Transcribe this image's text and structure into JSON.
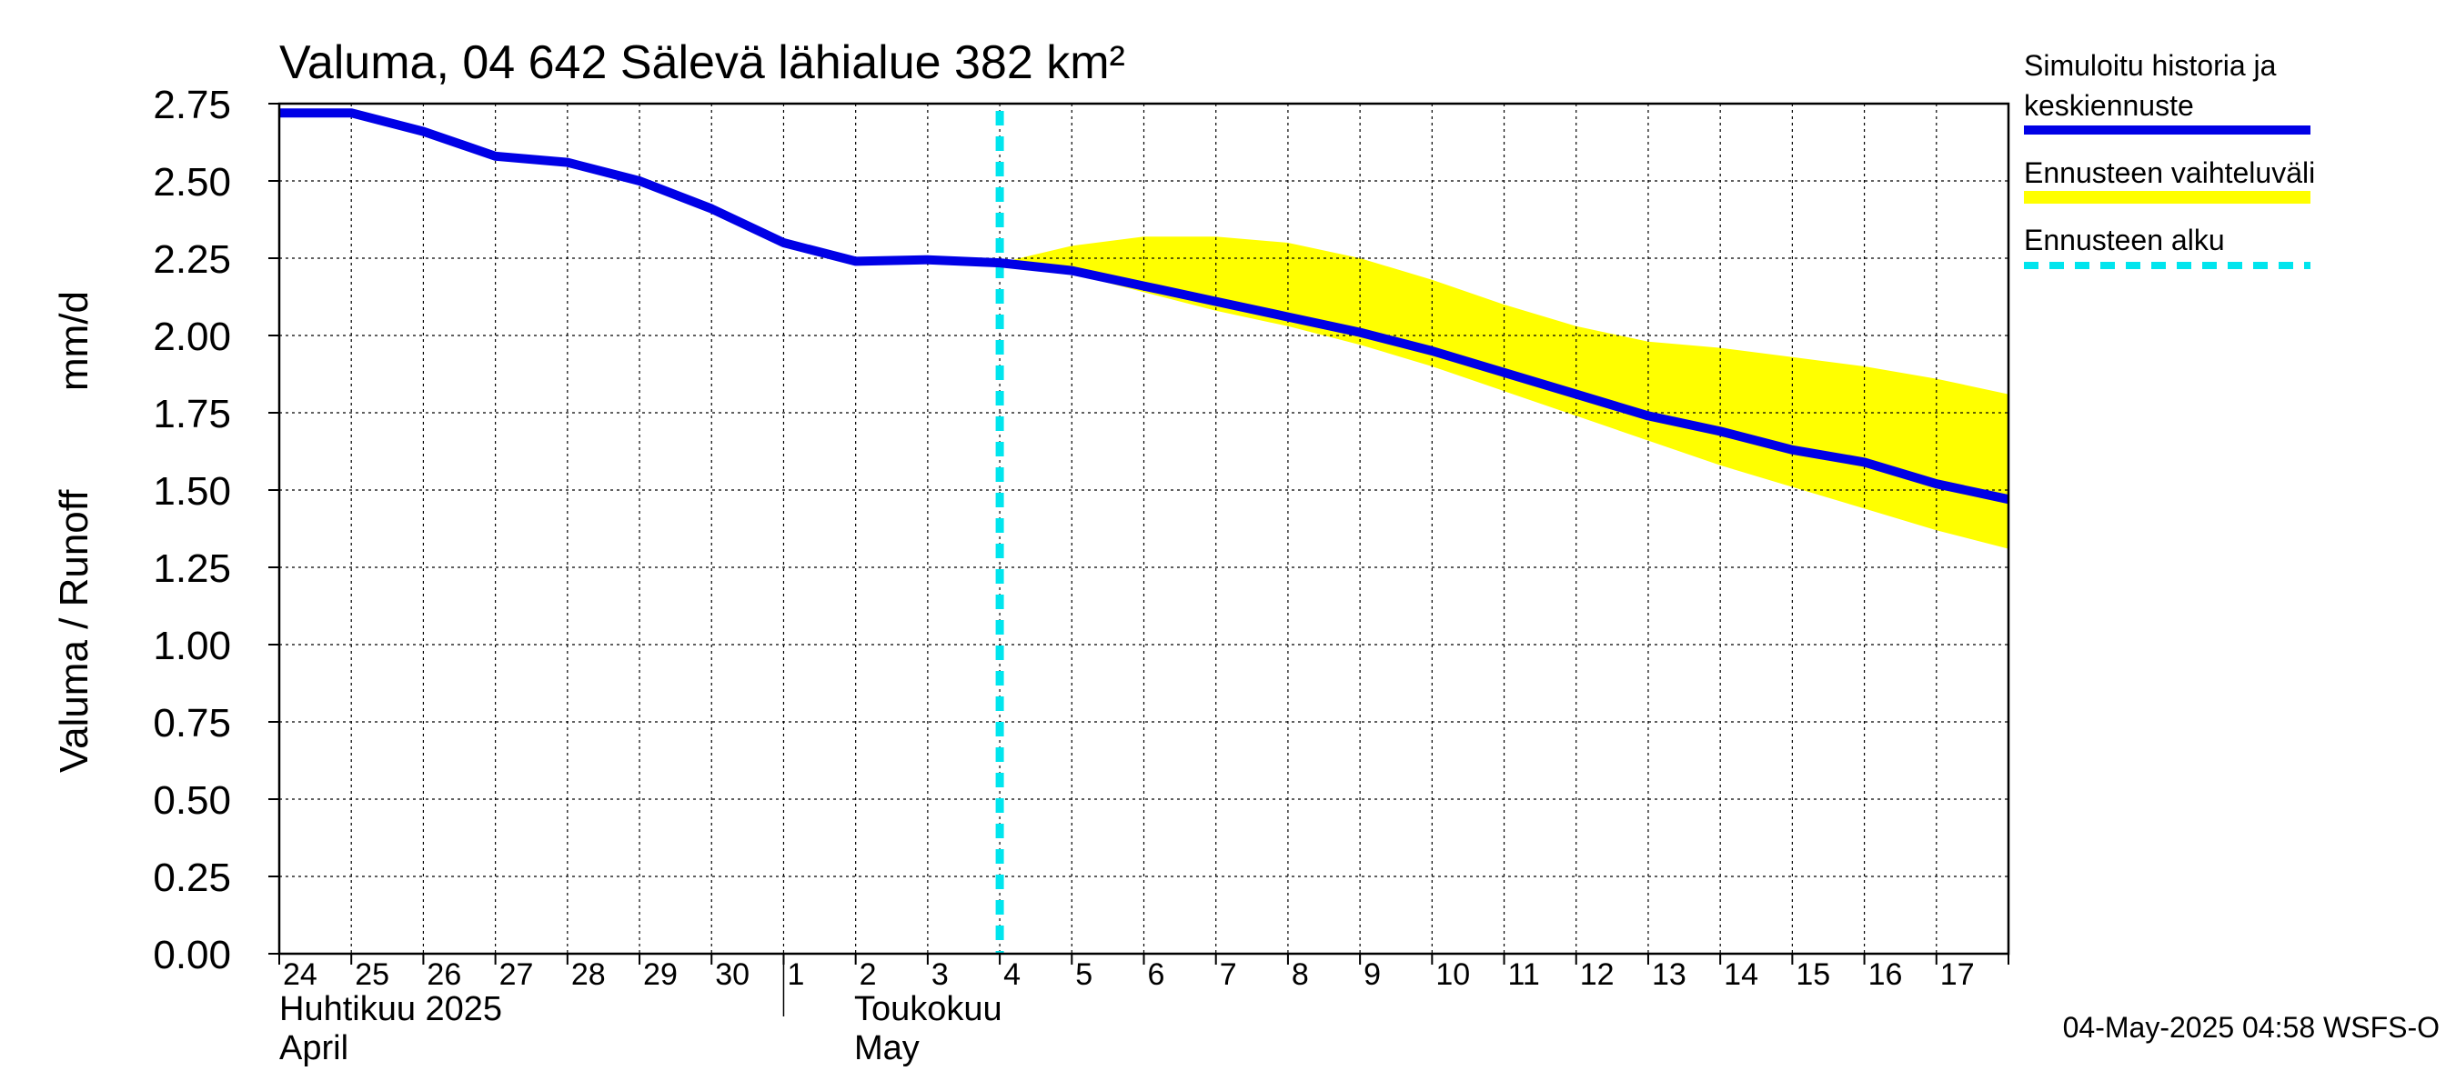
{
  "chart_data": {
    "type": "line",
    "title": "Valuma, 04 642 Sälevä lähialue 382 km²",
    "ylabel_left": "Valuma / Runoff",
    "ylabel_right": "mm/d",
    "ylim": [
      0,
      2.75
    ],
    "yticks": [
      "0.00",
      "0.25",
      "0.50",
      "0.75",
      "1.00",
      "1.25",
      "1.50",
      "1.75",
      "2.00",
      "2.25",
      "2.50",
      "2.75"
    ],
    "x_days": [
      "24",
      "25",
      "26",
      "27",
      "28",
      "29",
      "30",
      "1",
      "2",
      "3",
      "4",
      "5",
      "6",
      "7",
      "8",
      "9",
      "10",
      "11",
      "12",
      "13",
      "14",
      "15",
      "16",
      "17"
    ],
    "month_labels": [
      {
        "line1": "Huhtikuu  2025",
        "line2": "April"
      },
      {
        "line1": "Toukokuu",
        "line2": "May"
      }
    ],
    "x_range": [
      "2025-04-24",
      "2025-05-18"
    ],
    "forecast_start": "2025-05-04",
    "grid": true,
    "legend_position": "right",
    "series": [
      {
        "name": "Simuloitu historia ja keskiennuste",
        "color": "#0000e6",
        "x": [
          "2025-04-24",
          "2025-04-25",
          "2025-04-26",
          "2025-04-27",
          "2025-04-28",
          "2025-04-29",
          "2025-04-30",
          "2025-05-01",
          "2025-05-02",
          "2025-05-03",
          "2025-05-04",
          "2025-05-05",
          "2025-05-06",
          "2025-05-07",
          "2025-05-08",
          "2025-05-09",
          "2025-05-10",
          "2025-05-11",
          "2025-05-12",
          "2025-05-13",
          "2025-05-14",
          "2025-05-15",
          "2025-05-16",
          "2025-05-17",
          "2025-05-18"
        ],
        "values": [
          2.72,
          2.72,
          2.66,
          2.58,
          2.56,
          2.5,
          2.41,
          2.3,
          2.24,
          2.245,
          2.235,
          2.21,
          2.16,
          2.11,
          2.06,
          2.01,
          1.95,
          1.88,
          1.81,
          1.74,
          1.69,
          1.63,
          1.59,
          1.52,
          1.47
        ]
      },
      {
        "name": "Ennusteen vaihteluväli",
        "color": "#ffff00",
        "type": "area",
        "x": [
          "2025-05-04",
          "2025-05-05",
          "2025-05-06",
          "2025-05-07",
          "2025-05-08",
          "2025-05-09",
          "2025-05-10",
          "2025-05-11",
          "2025-05-12",
          "2025-05-13",
          "2025-05-14",
          "2025-05-15",
          "2025-05-16",
          "2025-05-17",
          "2025-05-18"
        ],
        "upper": [
          2.235,
          2.29,
          2.32,
          2.32,
          2.3,
          2.25,
          2.18,
          2.1,
          2.03,
          1.98,
          1.96,
          1.93,
          1.9,
          1.86,
          1.81
        ],
        "lower": [
          2.235,
          2.2,
          2.14,
          2.08,
          2.03,
          1.97,
          1.9,
          1.82,
          1.74,
          1.66,
          1.58,
          1.51,
          1.44,
          1.37,
          1.31
        ]
      },
      {
        "name": "Ennusteen alku",
        "color": "#00e5ee",
        "type": "vline"
      }
    ]
  },
  "legend": [
    {
      "line1": "Simuloitu historia ja",
      "line2": "keskiennuste",
      "color": "#0000e6",
      "style": "solid"
    },
    {
      "line1": "Ennusteen vaihteluväli",
      "line2": "",
      "color": "#ffff00",
      "style": "solid"
    },
    {
      "line1": "Ennusteen alku",
      "line2": "",
      "color": "#00e5ee",
      "style": "dashed"
    }
  ],
  "footer": "04-May-2025 04:58 WSFS-O"
}
